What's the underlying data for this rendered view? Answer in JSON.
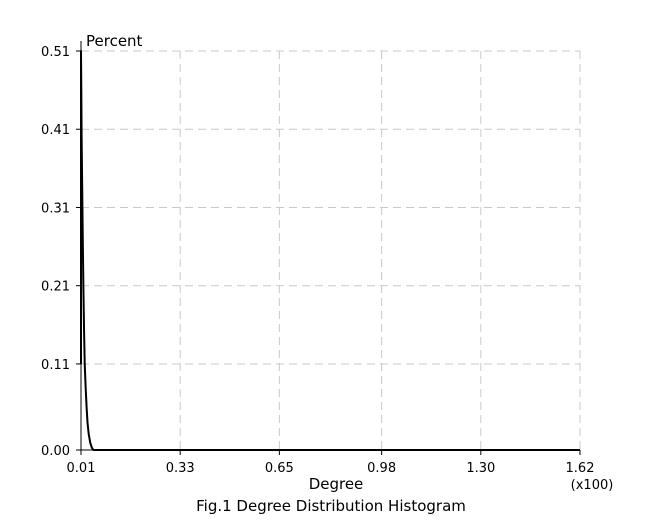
{
  "chart_data": {
    "type": "line",
    "title": "Fig.1 Degree Distribution Histogram",
    "xlabel": "Degree",
    "ylabel": "Percent",
    "x_multiplier": "(x100)",
    "xlim": [
      0.01,
      1.62
    ],
    "ylim": [
      0.0,
      0.51
    ],
    "x_ticks": [
      "0.01",
      "0.33",
      "0.65",
      "0.98",
      "1.30",
      "1.62"
    ],
    "y_ticks": [
      "0.00",
      "0.11",
      "0.21",
      "0.31",
      "0.41",
      "0.51"
    ],
    "grid": true,
    "grid_style": "dashed",
    "series_color": "#000000",
    "series": [
      {
        "name": "",
        "x": [
          0.01,
          0.01,
          0.011,
          0.012,
          0.014,
          0.016,
          0.018,
          0.02,
          0.022,
          0.025,
          0.028,
          0.031,
          0.035,
          0.04,
          0.045,
          0.05,
          0.06,
          0.8,
          1.62
        ],
        "y": [
          0.11,
          0.51,
          0.46,
          0.4,
          0.33,
          0.26,
          0.2,
          0.15,
          0.11,
          0.08,
          0.055,
          0.035,
          0.02,
          0.009,
          0.003,
          0.0,
          0.0,
          0.0,
          0.0
        ]
      }
    ]
  }
}
